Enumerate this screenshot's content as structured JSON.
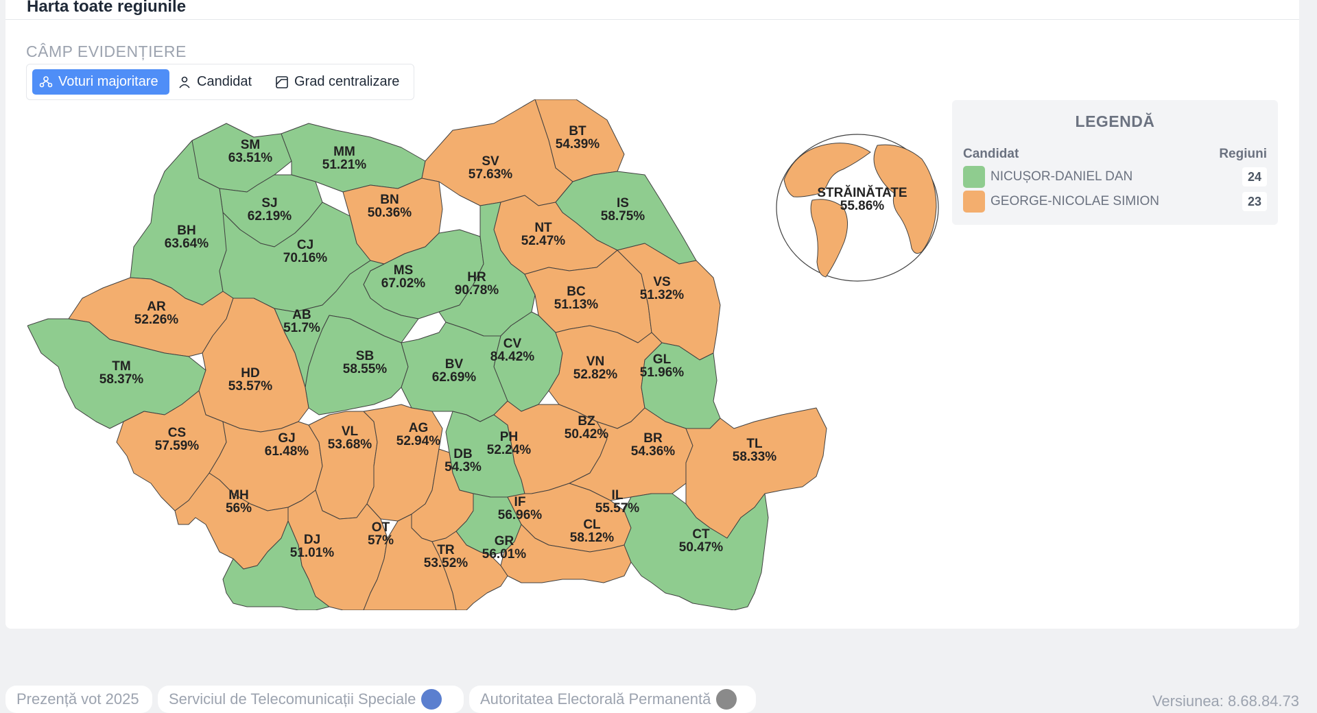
{
  "card": {
    "title": "Harta toate regiunile"
  },
  "highlight": {
    "label": "CÂMP EVIDENȚIERE",
    "options": [
      {
        "label": "Voturi majoritare",
        "icon": "users-group-icon",
        "active": true
      },
      {
        "label": "Candidat",
        "icon": "person-icon",
        "active": false
      },
      {
        "label": "Grad centralizare",
        "icon": "chart-box-icon",
        "active": false
      }
    ]
  },
  "colors": {
    "green": "#8fcc8f",
    "orange": "#f3ae6e",
    "accent": "#4f8ef7"
  },
  "regions": [
    {
      "code": "SM",
      "pct": "63.51%",
      "winner": "green"
    },
    {
      "code": "MM",
      "pct": "51.21%",
      "winner": "green"
    },
    {
      "code": "BT",
      "pct": "54.39%",
      "winner": "orange"
    },
    {
      "code": "SV",
      "pct": "57.63%",
      "winner": "orange"
    },
    {
      "code": "SJ",
      "pct": "62.19%",
      "winner": "green"
    },
    {
      "code": "BN",
      "pct": "50.36%",
      "winner": "orange"
    },
    {
      "code": "IS",
      "pct": "58.75%",
      "winner": "green"
    },
    {
      "code": "BH",
      "pct": "63.64%",
      "winner": "green"
    },
    {
      "code": "CJ",
      "pct": "70.16%",
      "winner": "green"
    },
    {
      "code": "NT",
      "pct": "52.47%",
      "winner": "orange"
    },
    {
      "code": "MS",
      "pct": "67.02%",
      "winner": "green"
    },
    {
      "code": "HR",
      "pct": "90.78%",
      "winner": "green"
    },
    {
      "code": "BC",
      "pct": "51.13%",
      "winner": "orange"
    },
    {
      "code": "VS",
      "pct": "51.32%",
      "winner": "orange"
    },
    {
      "code": "AR",
      "pct": "52.26%",
      "winner": "orange"
    },
    {
      "code": "AB",
      "pct": "51.7%",
      "winner": "green"
    },
    {
      "code": "SB",
      "pct": "58.55%",
      "winner": "green"
    },
    {
      "code": "CV",
      "pct": "84.42%",
      "winner": "green"
    },
    {
      "code": "TM",
      "pct": "58.37%",
      "winner": "green"
    },
    {
      "code": "HD",
      "pct": "53.57%",
      "winner": "orange"
    },
    {
      "code": "BV",
      "pct": "62.69%",
      "winner": "green"
    },
    {
      "code": "VN",
      "pct": "52.82%",
      "winner": "orange"
    },
    {
      "code": "GL",
      "pct": "51.96%",
      "winner": "green"
    },
    {
      "code": "CS",
      "pct": "57.59%",
      "winner": "orange"
    },
    {
      "code": "GJ",
      "pct": "61.48%",
      "winner": "orange"
    },
    {
      "code": "VL",
      "pct": "53.68%",
      "winner": "orange"
    },
    {
      "code": "AG",
      "pct": "52.94%",
      "winner": "orange"
    },
    {
      "code": "PH",
      "pct": "52.24%",
      "winner": "green"
    },
    {
      "code": "BZ",
      "pct": "50.42%",
      "winner": "orange"
    },
    {
      "code": "BR",
      "pct": "54.36%",
      "winner": "orange"
    },
    {
      "code": "TL",
      "pct": "58.33%",
      "winner": "orange"
    },
    {
      "code": "DB",
      "pct": "54.3%",
      "winner": "orange"
    },
    {
      "code": "MH",
      "pct": "56%",
      "winner": "orange"
    },
    {
      "code": "IF",
      "pct": "56.96%",
      "winner": "green"
    },
    {
      "code": "IL",
      "pct": "55.57%",
      "winner": "orange"
    },
    {
      "code": "OT",
      "pct": "57%",
      "winner": "orange"
    },
    {
      "code": "CL",
      "pct": "58.12%",
      "winner": "orange"
    },
    {
      "code": "CT",
      "pct": "50.47%",
      "winner": "green"
    },
    {
      "code": "DJ",
      "pct": "51.01%",
      "winner": "green"
    },
    {
      "code": "TR",
      "pct": "53.52%",
      "winner": "orange"
    },
    {
      "code": "GR",
      "pct": "56.01%",
      "winner": "orange"
    }
  ],
  "abroad": {
    "code": "STRĂINĂTATE",
    "pct": "55.86%",
    "winner": "orange"
  },
  "legend": {
    "title": "LEGENDĂ",
    "col_candidate": "Candidat",
    "col_regions": "Regiuni",
    "rows": [
      {
        "name": "NICUȘOR-DANIEL DAN",
        "count": "24",
        "color": "#8fcc8f"
      },
      {
        "name": "GEORGE-NICOLAE SIMION",
        "count": "23",
        "color": "#f3ae6e"
      }
    ]
  },
  "footer": {
    "items": [
      "Prezență vot 2025",
      "Serviciul de Telecomunicații Speciale",
      "Autoritatea Electorală Permanentă"
    ],
    "version": "Versiunea: 8.68.84.73"
  }
}
